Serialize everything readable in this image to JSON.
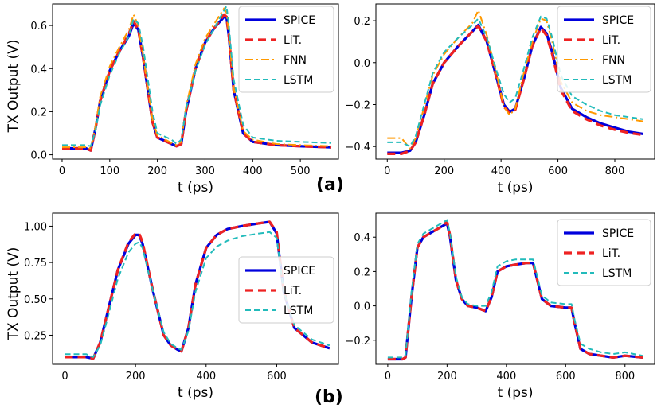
{
  "panel_labels": [
    "(a)",
    "(b)"
  ],
  "colors": {
    "SPICE": "#0000dd",
    "LiT.": "#ee2222",
    "FNN": "#ff9900",
    "LSTM": "#22bbbb"
  },
  "chart_data": [
    {
      "type": "line",
      "xlabel": "t (ps)",
      "ylabel": "TX Output (V)",
      "xlim": [
        -20,
        580
      ],
      "ylim": [
        -0.02,
        0.7
      ],
      "xticks": [
        0,
        100,
        200,
        300,
        400,
        500
      ],
      "yticks": [
        0.0,
        0.2,
        0.4,
        0.6
      ],
      "ytick_labels": [
        "0.0",
        "0.2",
        "0.4",
        "0.6"
      ],
      "legend": "top-right",
      "series": [
        {
          "name": "SPICE",
          "x": [
            0,
            50,
            60,
            70,
            80,
            100,
            120,
            140,
            150,
            160,
            170,
            190,
            200,
            230,
            240,
            250,
            260,
            280,
            300,
            320,
            340,
            345,
            350,
            360,
            380,
            400,
            450,
            500,
            565
          ],
          "y": [
            0.03,
            0.03,
            0.02,
            0.12,
            0.25,
            0.39,
            0.48,
            0.55,
            0.61,
            0.58,
            0.45,
            0.15,
            0.08,
            0.05,
            0.04,
            0.05,
            0.2,
            0.4,
            0.52,
            0.59,
            0.64,
            0.64,
            0.55,
            0.3,
            0.1,
            0.06,
            0.045,
            0.04,
            0.035
          ]
        },
        {
          "name": "LiT.",
          "x": [
            0,
            50,
            60,
            70,
            80,
            100,
            120,
            140,
            150,
            160,
            170,
            190,
            200,
            230,
            240,
            250,
            260,
            280,
            300,
            320,
            340,
            345,
            350,
            360,
            380,
            400,
            450,
            500,
            565
          ],
          "y": [
            0.03,
            0.03,
            0.02,
            0.12,
            0.25,
            0.39,
            0.48,
            0.56,
            0.62,
            0.58,
            0.45,
            0.15,
            0.08,
            0.05,
            0.04,
            0.05,
            0.2,
            0.4,
            0.52,
            0.59,
            0.65,
            0.64,
            0.55,
            0.3,
            0.1,
            0.06,
            0.045,
            0.04,
            0.035
          ]
        },
        {
          "name": "FNN",
          "x": [
            0,
            50,
            60,
            70,
            80,
            100,
            120,
            140,
            150,
            160,
            170,
            190,
            200,
            230,
            240,
            250,
            260,
            280,
            300,
            320,
            340,
            345,
            350,
            360,
            380,
            400,
            450,
            500,
            565
          ],
          "y": [
            0.035,
            0.035,
            0.03,
            0.13,
            0.27,
            0.41,
            0.5,
            0.58,
            0.65,
            0.6,
            0.46,
            0.16,
            0.09,
            0.055,
            0.045,
            0.06,
            0.22,
            0.42,
            0.54,
            0.61,
            0.68,
            0.66,
            0.56,
            0.31,
            0.11,
            0.07,
            0.05,
            0.045,
            0.04
          ]
        },
        {
          "name": "LSTM",
          "x": [
            0,
            50,
            60,
            70,
            80,
            100,
            120,
            140,
            150,
            160,
            170,
            190,
            200,
            230,
            240,
            250,
            260,
            280,
            300,
            320,
            340,
            345,
            350,
            360,
            380,
            400,
            450,
            500,
            565
          ],
          "y": [
            0.045,
            0.045,
            0.04,
            0.11,
            0.23,
            0.37,
            0.47,
            0.55,
            0.63,
            0.61,
            0.5,
            0.2,
            0.1,
            0.07,
            0.05,
            0.07,
            0.21,
            0.39,
            0.51,
            0.59,
            0.67,
            0.69,
            0.6,
            0.35,
            0.14,
            0.08,
            0.065,
            0.06,
            0.055
          ]
        }
      ]
    },
    {
      "type": "line",
      "xlabel": "t (ps)",
      "ylabel": "",
      "xlim": [
        -40,
        940
      ],
      "ylim": [
        -0.46,
        0.28
      ],
      "xticks": [
        0,
        200,
        400,
        600,
        800
      ],
      "yticks": [
        -0.4,
        -0.2,
        0.0,
        0.2
      ],
      "ytick_labels": [
        "−0.4",
        "−0.2",
        "0.0",
        "0.2"
      ],
      "legend": "top-right",
      "series": [
        {
          "name": "SPICE",
          "x": [
            0,
            50,
            80,
            100,
            130,
            160,
            200,
            250,
            300,
            320,
            350,
            380,
            410,
            430,
            450,
            480,
            510,
            540,
            560,
            580,
            610,
            650,
            700,
            750,
            800,
            850,
            900
          ],
          "y": [
            -0.43,
            -0.43,
            -0.42,
            -0.38,
            -0.25,
            -0.1,
            0.0,
            0.08,
            0.15,
            0.18,
            0.1,
            -0.05,
            -0.2,
            -0.235,
            -0.22,
            -0.08,
            0.08,
            0.17,
            0.14,
            0.05,
            -0.12,
            -0.22,
            -0.26,
            -0.29,
            -0.31,
            -0.33,
            -0.34
          ]
        },
        {
          "name": "LiT.",
          "x": [
            0,
            50,
            80,
            100,
            130,
            160,
            200,
            250,
            300,
            320,
            350,
            380,
            410,
            430,
            450,
            480,
            510,
            540,
            560,
            580,
            610,
            650,
            700,
            750,
            800,
            850,
            900
          ],
          "y": [
            -0.435,
            -0.435,
            -0.42,
            -0.38,
            -0.25,
            -0.1,
            0.0,
            0.08,
            0.15,
            0.175,
            0.1,
            -0.05,
            -0.21,
            -0.24,
            -0.225,
            -0.08,
            0.08,
            0.165,
            0.13,
            0.04,
            -0.13,
            -0.23,
            -0.27,
            -0.3,
            -0.32,
            -0.335,
            -0.345
          ]
        },
        {
          "name": "FNN",
          "x": [
            0,
            50,
            80,
            100,
            130,
            160,
            200,
            250,
            300,
            320,
            350,
            380,
            410,
            430,
            450,
            480,
            510,
            540,
            560,
            580,
            610,
            650,
            700,
            750,
            800,
            850,
            900
          ],
          "y": [
            -0.36,
            -0.36,
            -0.41,
            -0.36,
            -0.21,
            -0.06,
            0.04,
            0.12,
            0.19,
            0.25,
            0.13,
            -0.03,
            -0.21,
            -0.25,
            -0.22,
            -0.05,
            0.1,
            0.21,
            0.2,
            0.1,
            -0.09,
            -0.19,
            -0.23,
            -0.25,
            -0.26,
            -0.27,
            -0.28
          ]
        },
        {
          "name": "LSTM",
          "x": [
            0,
            50,
            80,
            100,
            130,
            160,
            200,
            250,
            300,
            320,
            350,
            380,
            410,
            430,
            450,
            480,
            510,
            540,
            560,
            580,
            610,
            650,
            700,
            750,
            800,
            850,
            900
          ],
          "y": [
            -0.38,
            -0.38,
            -0.4,
            -0.35,
            -0.2,
            -0.05,
            0.05,
            0.12,
            0.18,
            0.21,
            0.12,
            -0.02,
            -0.15,
            -0.19,
            -0.17,
            -0.03,
            0.12,
            0.22,
            0.21,
            0.12,
            -0.06,
            -0.16,
            -0.2,
            -0.23,
            -0.25,
            -0.26,
            -0.27
          ]
        }
      ]
    },
    {
      "type": "line",
      "xlabel": "t (ps)",
      "ylabel": "TX Output (V)",
      "xlim": [
        -35,
        775
      ],
      "ylim": [
        0.05,
        1.09
      ],
      "xticks": [
        0,
        200,
        400,
        600
      ],
      "yticks": [
        0.25,
        0.5,
        0.75,
        1.0
      ],
      "ytick_labels": [
        "0.25",
        "0.50",
        "0.75",
        "1.00"
      ],
      "legend": "center-right",
      "series": [
        {
          "name": "SPICE",
          "x": [
            0,
            60,
            80,
            100,
            120,
            150,
            180,
            200,
            210,
            220,
            250,
            280,
            300,
            320,
            330,
            350,
            370,
            400,
            430,
            460,
            500,
            550,
            580,
            600,
            620,
            650,
            700,
            750
          ],
          "y": [
            0.1,
            0.1,
            0.09,
            0.2,
            0.4,
            0.7,
            0.88,
            0.94,
            0.94,
            0.88,
            0.55,
            0.25,
            0.18,
            0.15,
            0.14,
            0.3,
            0.6,
            0.85,
            0.94,
            0.98,
            1.0,
            1.02,
            1.03,
            0.95,
            0.55,
            0.3,
            0.2,
            0.16
          ]
        },
        {
          "name": "LiT.",
          "x": [
            0,
            60,
            80,
            100,
            120,
            150,
            180,
            200,
            210,
            220,
            250,
            280,
            300,
            320,
            330,
            350,
            370,
            400,
            430,
            460,
            500,
            550,
            580,
            600,
            620,
            650,
            700,
            750
          ],
          "y": [
            0.1,
            0.1,
            0.09,
            0.2,
            0.4,
            0.7,
            0.89,
            0.95,
            0.95,
            0.89,
            0.55,
            0.25,
            0.18,
            0.15,
            0.14,
            0.3,
            0.6,
            0.85,
            0.94,
            0.98,
            1.0,
            1.02,
            1.03,
            0.96,
            0.56,
            0.3,
            0.2,
            0.16
          ]
        },
        {
          "name": "LSTM",
          "x": [
            0,
            60,
            80,
            100,
            120,
            150,
            180,
            200,
            210,
            220,
            250,
            280,
            300,
            320,
            330,
            350,
            370,
            400,
            430,
            460,
            500,
            550,
            580,
            600,
            620,
            650,
            700,
            750
          ],
          "y": [
            0.12,
            0.12,
            0.1,
            0.18,
            0.36,
            0.64,
            0.82,
            0.88,
            0.89,
            0.85,
            0.55,
            0.27,
            0.19,
            0.16,
            0.15,
            0.28,
            0.55,
            0.78,
            0.86,
            0.9,
            0.93,
            0.95,
            0.96,
            0.92,
            0.55,
            0.32,
            0.22,
            0.18
          ]
        }
      ]
    },
    {
      "type": "line",
      "xlabel": "t (ps)",
      "ylabel": "",
      "xlim": [
        -40,
        900
      ],
      "ylim": [
        -0.34,
        0.54
      ],
      "xticks": [
        0,
        200,
        400,
        600,
        800
      ],
      "yticks": [
        -0.2,
        0.0,
        0.2,
        0.4
      ],
      "ytick_labels": [
        "−0.2",
        "0.0",
        "0.2",
        "0.4"
      ],
      "legend": "top-right",
      "series": [
        {
          "name": "SPICE",
          "x": [
            0,
            50,
            60,
            80,
            100,
            120,
            150,
            180,
            200,
            210,
            230,
            250,
            270,
            300,
            330,
            350,
            370,
            400,
            430,
            470,
            490,
            500,
            520,
            550,
            600,
            620,
            630,
            650,
            680,
            720,
            760,
            800,
            860
          ],
          "y": [
            -0.31,
            -0.31,
            -0.3,
            0.05,
            0.34,
            0.4,
            0.43,
            0.46,
            0.48,
            0.4,
            0.15,
            0.04,
            0.0,
            -0.01,
            -0.03,
            0.05,
            0.2,
            0.23,
            0.24,
            0.25,
            0.25,
            0.18,
            0.04,
            0.0,
            -0.01,
            -0.01,
            -0.1,
            -0.25,
            -0.28,
            -0.29,
            -0.3,
            -0.29,
            -0.3
          ]
        },
        {
          "name": "LiT.",
          "x": [
            0,
            50,
            60,
            80,
            100,
            120,
            150,
            180,
            200,
            210,
            230,
            250,
            270,
            300,
            330,
            350,
            370,
            400,
            430,
            470,
            490,
            500,
            520,
            550,
            600,
            620,
            630,
            650,
            680,
            720,
            760,
            800,
            860
          ],
          "y": [
            -0.31,
            -0.31,
            -0.3,
            0.05,
            0.34,
            0.4,
            0.43,
            0.46,
            0.49,
            0.41,
            0.15,
            0.04,
            0.0,
            -0.01,
            -0.03,
            0.05,
            0.2,
            0.23,
            0.24,
            0.25,
            0.25,
            0.18,
            0.04,
            0.0,
            -0.01,
            -0.01,
            -0.1,
            -0.25,
            -0.28,
            -0.29,
            -0.3,
            -0.29,
            -0.3
          ]
        },
        {
          "name": "LSTM",
          "x": [
            0,
            50,
            60,
            80,
            100,
            120,
            150,
            180,
            200,
            210,
            230,
            250,
            270,
            300,
            330,
            350,
            370,
            400,
            430,
            470,
            490,
            500,
            520,
            550,
            600,
            620,
            630,
            650,
            680,
            720,
            760,
            800,
            860
          ],
          "y": [
            -0.3,
            -0.3,
            -0.29,
            0.08,
            0.36,
            0.42,
            0.45,
            0.48,
            0.5,
            0.42,
            0.17,
            0.05,
            0.01,
            0.0,
            0.0,
            0.08,
            0.23,
            0.26,
            0.27,
            0.27,
            0.27,
            0.2,
            0.06,
            0.02,
            0.01,
            0.01,
            -0.08,
            -0.22,
            -0.25,
            -0.27,
            -0.28,
            -0.27,
            -0.29
          ]
        }
      ]
    }
  ]
}
